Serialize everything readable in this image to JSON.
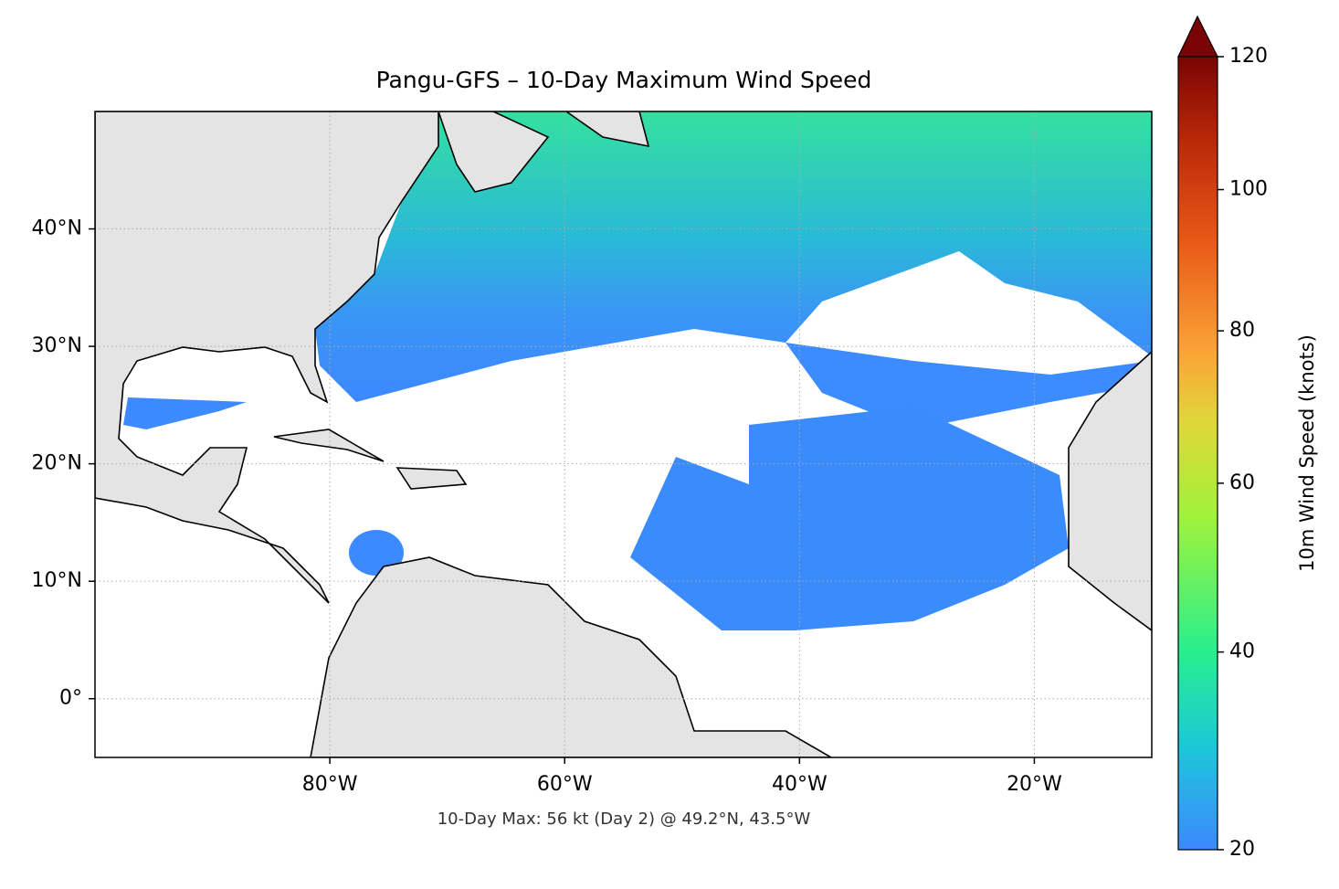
{
  "chart_data": {
    "type": "map",
    "title": "Pangu-GFS – 10-Day Maximum Wind Speed",
    "annotation": "10-Day Max: 56 kt (Day 2) @ 49.2°N, 43.5°W",
    "xlim": [
      -100,
      -10
    ],
    "xticks": [
      {
        "value": -80,
        "label": "80°W"
      },
      {
        "value": -60,
        "label": "60°W"
      },
      {
        "value": -40,
        "label": "40°W"
      },
      {
        "value": -20,
        "label": "20°W"
      }
    ],
    "ylim": [
      -5,
      50
    ],
    "yticks": [
      {
        "value": 0,
        "label": "0°"
      },
      {
        "value": 10,
        "label": "10°N"
      },
      {
        "value": 20,
        "label": "20°N"
      },
      {
        "value": 30,
        "label": "30°N"
      },
      {
        "value": 40,
        "label": "40°N"
      }
    ],
    "grid": true,
    "colorbar": {
      "label": "10m Wind Speed (knots)",
      "lim": [
        20,
        120
      ],
      "ticks": [
        20,
        40,
        60,
        80,
        100,
        120
      ]
    }
  }
}
